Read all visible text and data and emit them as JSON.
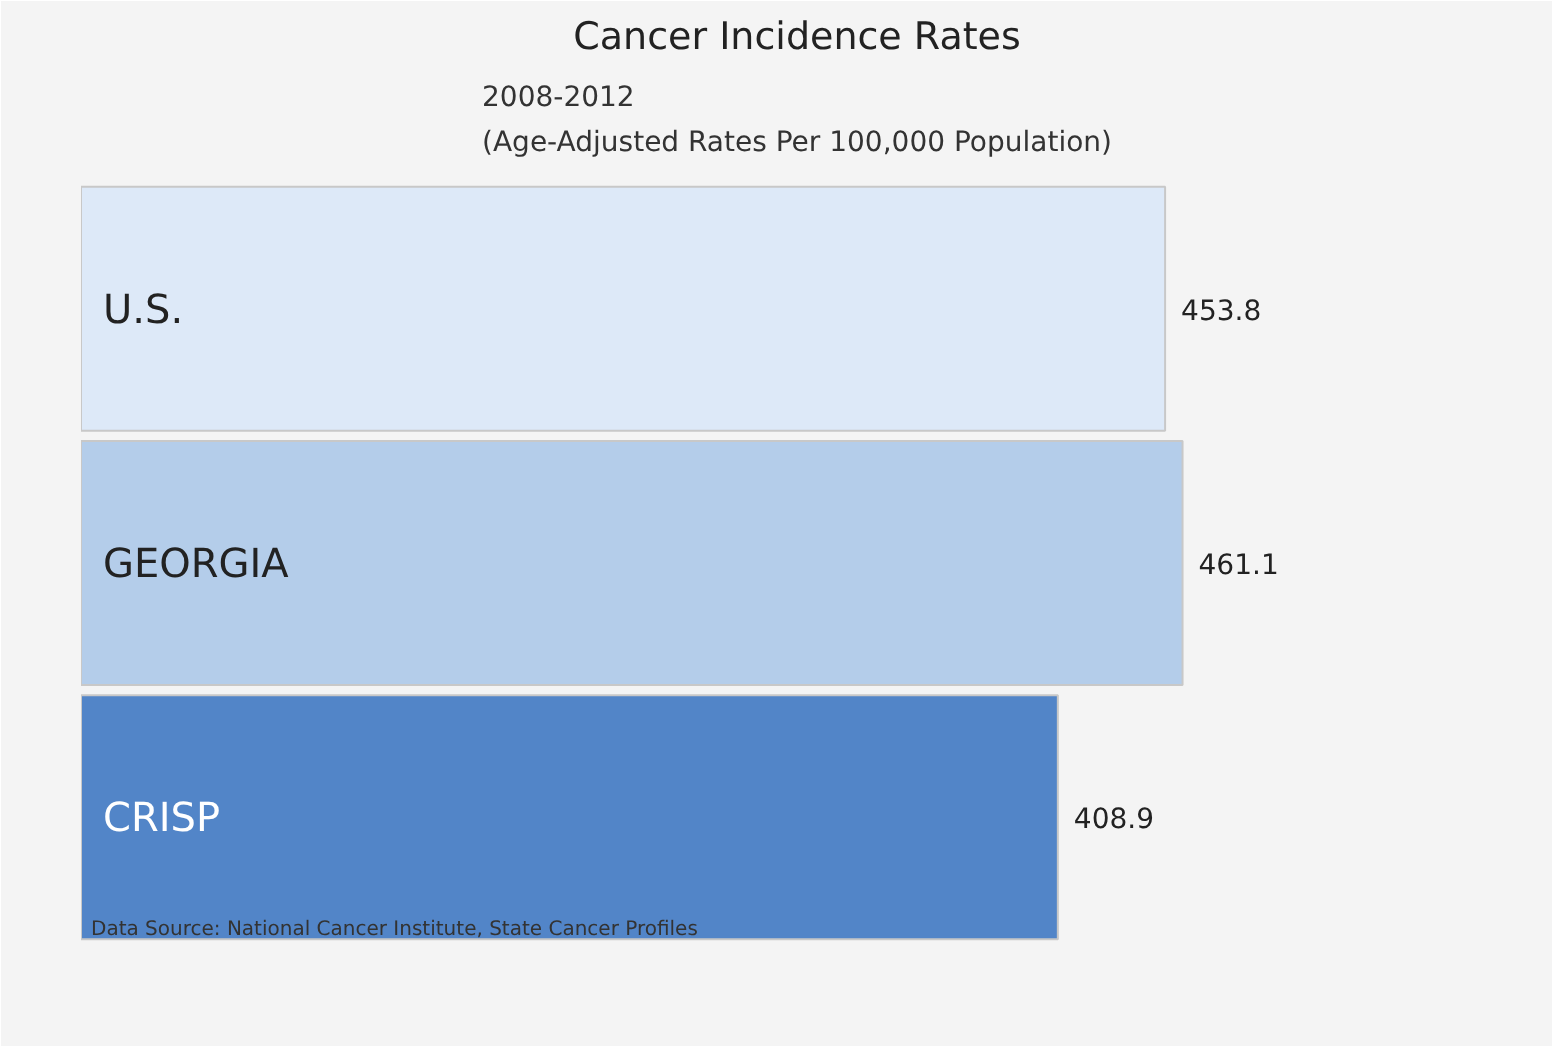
{
  "chart_data": {
    "type": "bar",
    "orientation": "horizontal",
    "title": "Cancer Incidence Rates",
    "subtitle": "2008-2012\n(Age-Adjusted Rates Per 100,000 Population)",
    "categories": [
      "U.S.",
      "GEORGIA",
      "CRISP"
    ],
    "values": [
      453.8,
      461.1,
      408.9
    ],
    "colors": [
      "#dde9f8",
      "#b4cdea",
      "#5285c8"
    ],
    "data_labels": true,
    "grid": false,
    "annotations": [
      "Data Source:  National Cancer Institute, State Cancer Profiles"
    ]
  }
}
